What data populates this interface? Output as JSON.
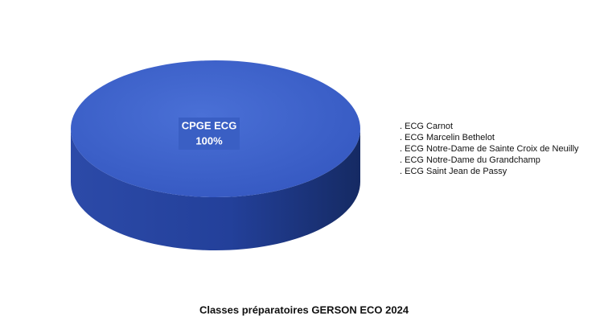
{
  "chart_data": {
    "type": "pie",
    "title": "Classes préparatoires GERSON  ECO 2024",
    "categories": [
      "CPGE ECG"
    ],
    "values": [
      100
    ],
    "value_labels": [
      "100%"
    ],
    "color": "#3d63c9",
    "legend_items": [
      ". ECG Carnot",
      ". ECG Marcelin Bethelot",
      ". ECG Notre-Dame de Sainte Croix de Neuilly",
      ". ECG Notre-Dame du Grandchamp",
      ". ECG Saint Jean de Passy"
    ]
  }
}
